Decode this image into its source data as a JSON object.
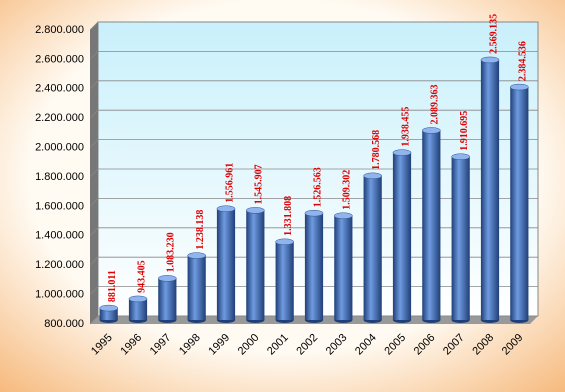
{
  "chart_data": {
    "type": "bar",
    "categories": [
      "1995",
      "1996",
      "1997",
      "1998",
      "1999",
      "2000",
      "2001",
      "2002",
      "2003",
      "2004",
      "2005",
      "2006",
      "2007",
      "2008",
      "2009"
    ],
    "values": [
      881011,
      943405,
      1083230,
      1238138,
      1556961,
      1545907,
      1331808,
      1526563,
      1509302,
      1780568,
      1938455,
      2089363,
      1910695,
      2569135,
      2384536
    ],
    "value_labels": [
      "881.011",
      "943.405",
      "1.083.230",
      "1.238.138",
      "1.556.961",
      "1.545.907",
      "1.331.808",
      "1.526.563",
      "1.509.302",
      "1.780.568",
      "1.938.455",
      "2.089.363",
      "1.910.695",
      "2.569.135",
      "2.384.536"
    ],
    "color": "#3a6fb5",
    "label_color": "#e00000",
    "ylim": [
      800000,
      2800000
    ],
    "yticks": [
      {
        "value": 800000,
        "label": "800.000"
      },
      {
        "value": 1000000,
        "label": "1.000.000"
      },
      {
        "value": 1200000,
        "label": "1.200.000"
      },
      {
        "value": 1400000,
        "label": "1.400.000"
      },
      {
        "value": 1600000,
        "label": "1.600.000"
      },
      {
        "value": 1800000,
        "label": "1.800.000"
      },
      {
        "value": 2000000,
        "label": "2.000.000"
      },
      {
        "value": 2200000,
        "label": "2.200.000"
      },
      {
        "value": 2400000,
        "label": "2.400.000"
      },
      {
        "value": 2600000,
        "label": "2.600.000"
      },
      {
        "value": 2800000,
        "label": "2.800.000"
      }
    ],
    "grid": true
  }
}
